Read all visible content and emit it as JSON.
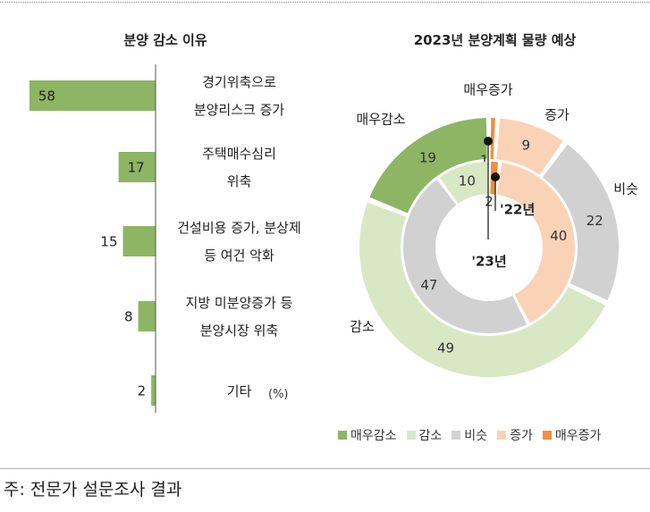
{
  "footnote": "주: 전문가 설문조사 결과",
  "colors": {
    "bar": "#8db564",
    "매우감소": "#8db564",
    "감소": "#d8e8c5",
    "비슷": "#d1d1d1",
    "증가": "#fad2b5",
    "매우증가": "#f08f3e"
  },
  "chart_data": [
    {
      "type": "bar",
      "title": "분양 감소 이유",
      "orientation": "horizontal",
      "unit": "(%)",
      "categories": [
        [
          "경기위축으로",
          "분양리스크 증가"
        ],
        [
          "주택매수심리",
          "위축"
        ],
        [
          "건설비용 증가, 분상제",
          "등 여건 악화"
        ],
        [
          "지방 미분양증가 등",
          "분양시장 위축"
        ],
        [
          "기타"
        ]
      ],
      "values": [
        58,
        17,
        15,
        8,
        2
      ],
      "xlim": [
        0,
        60
      ],
      "grid": false
    },
    {
      "type": "pie",
      "variant": "donut",
      "title": "2023년 분양계획 물량 예상",
      "categories": [
        "매우감소",
        "감소",
        "비슷",
        "증가",
        "매우증가"
      ],
      "series": [
        {
          "name": "'22년",
          "ring": "inner",
          "values": [
            0,
            10,
            47,
            40,
            2
          ]
        },
        {
          "name": "'23년",
          "ring": "outer",
          "values": [
            19,
            49,
            22,
            9,
            1
          ]
        }
      ],
      "slice_labels": [
        "매우감소",
        "감소",
        "비슷",
        "증가",
        "매우증가"
      ],
      "legend": {
        "position": "bottom",
        "entries": [
          "매우감소",
          "감소",
          "비슷",
          "증가",
          "매우증가"
        ]
      }
    }
  ]
}
